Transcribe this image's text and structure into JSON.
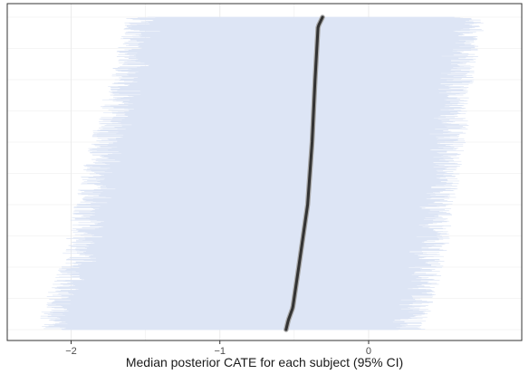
{
  "chart_data": {
    "type": "interval",
    "xlabel": "Median posterior CATE for each subject (95% CI)",
    "ylabel": "",
    "x_ticks": [
      {
        "value": -2,
        "label": "−2"
      },
      {
        "value": -1,
        "label": "−1"
      },
      {
        "value": 0,
        "label": "0"
      }
    ],
    "xlim": [
      -2.35,
      0.95
    ],
    "n_subjects": 1000,
    "grid": true,
    "legend": "none",
    "colors": {
      "interval": "#dde5f5",
      "median_line": "#333333",
      "median_outline": "#a8a8a8",
      "grid": "#ebebeb",
      "panel_border": "#333333"
    },
    "median_profile": [
      {
        "rank": 0.0,
        "median": -0.555
      },
      {
        "rank": 0.03,
        "median": -0.54
      },
      {
        "rank": 0.07,
        "median": -0.51
      },
      {
        "rank": 0.2,
        "median": -0.47
      },
      {
        "rank": 0.4,
        "median": -0.41
      },
      {
        "rank": 0.6,
        "median": -0.38
      },
      {
        "rank": 0.8,
        "median": -0.36
      },
      {
        "rank": 0.97,
        "median": -0.34
      },
      {
        "rank": 1.0,
        "median": -0.31
      }
    ],
    "lower_profile": [
      {
        "rank": 0.0,
        "lower": -2.1
      },
      {
        "rank": 0.1,
        "lower": -2.05
      },
      {
        "rank": 0.2,
        "lower": -1.95
      },
      {
        "rank": 0.4,
        "lower": -1.85
      },
      {
        "rank": 0.6,
        "lower": -1.75
      },
      {
        "rank": 0.8,
        "lower": -1.62
      },
      {
        "rank": 1.0,
        "lower": -1.5
      }
    ],
    "upper_profile": [
      {
        "rank": 0.0,
        "upper": 0.25
      },
      {
        "rank": 0.2,
        "upper": 0.38
      },
      {
        "rank": 0.4,
        "upper": 0.46
      },
      {
        "rank": 0.6,
        "upper": 0.53
      },
      {
        "rank": 0.8,
        "upper": 0.58
      },
      {
        "rank": 1.0,
        "upper": 0.66
      }
    ]
  }
}
